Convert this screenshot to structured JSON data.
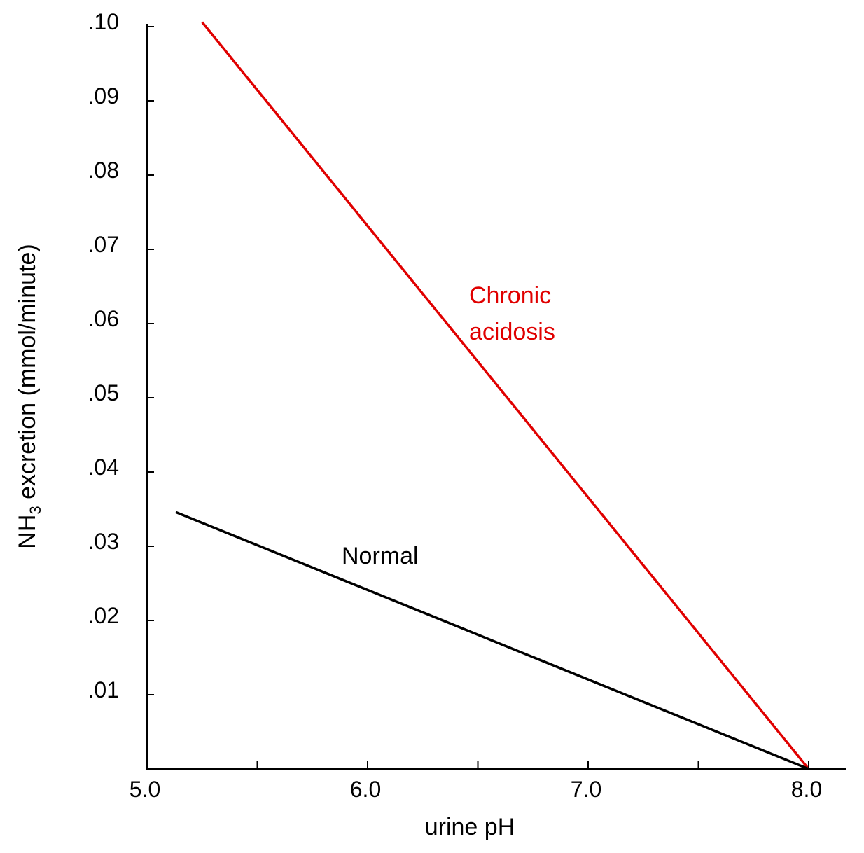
{
  "chart_data": {
    "type": "line",
    "xlabel": "urine pH",
    "ylabel": {
      "prefix": "NH",
      "subscript": "3",
      "suffix": " excretion  (mmol/minute)"
    },
    "xlim": [
      5.0,
      8.2
    ],
    "ylim": [
      0,
      0.1
    ],
    "x_ticks": [
      {
        "value": 5.0,
        "label": "5.0"
      },
      {
        "value": 5.5,
        "label": ""
      },
      {
        "value": 6.0,
        "label": "6.0"
      },
      {
        "value": 6.5,
        "label": ""
      },
      {
        "value": 7.0,
        "label": "7.0"
      },
      {
        "value": 7.5,
        "label": ""
      },
      {
        "value": 8.0,
        "label": "8.0"
      }
    ],
    "y_ticks": [
      {
        "value": 0.01,
        "label": ".01"
      },
      {
        "value": 0.02,
        "label": ".02"
      },
      {
        "value": 0.03,
        "label": ".03"
      },
      {
        "value": 0.04,
        "label": ".04"
      },
      {
        "value": 0.05,
        "label": ".05"
      },
      {
        "value": 0.06,
        "label": ".06"
      },
      {
        "value": 0.07,
        "label": ".07"
      },
      {
        "value": 0.08,
        "label": ".08"
      },
      {
        "value": 0.09,
        "label": ".09"
      },
      {
        "value": 0.1,
        "label": ".10"
      }
    ],
    "grid": false,
    "legend": "none",
    "series": [
      {
        "name": "Chronic acidosis",
        "label_lines": [
          "Chronic",
          "acidosis"
        ],
        "color": "#e00000",
        "x": [
          5.25,
          8.0
        ],
        "y": [
          0.1006,
          0.0
        ]
      },
      {
        "name": "Normal",
        "label_lines": [
          "Normal"
        ],
        "color": "#000000",
        "x": [
          5.13,
          8.0
        ],
        "y": [
          0.0346,
          0.0
        ]
      }
    ]
  }
}
